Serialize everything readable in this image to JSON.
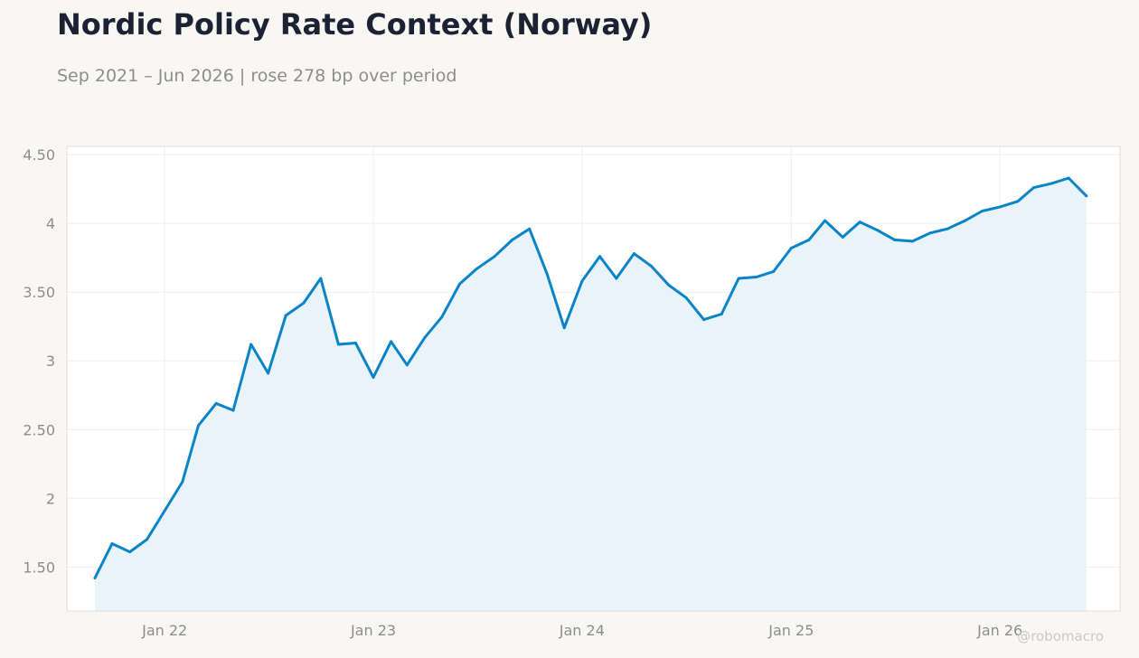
{
  "title": "Nordic Policy Rate Context (Norway)",
  "subtitle": "Sep 2021 – Jun 2026 | rose 278 bp over period",
  "watermark": "@robomacro",
  "colors": {
    "line": "#0a84c6",
    "fill": "#e9f3fa",
    "grid": "#eeeeee",
    "plot_background": "#ffffff",
    "page_background": "#f8f7f4"
  },
  "chart_data": {
    "type": "area",
    "title": "Nordic Policy Rate Context (Norway)",
    "subtitle": "Sep 2021 – Jun 2026 | rose 278 bp over period",
    "xlabel": "",
    "ylabel": "",
    "xlim": [
      "2021-07-14",
      "2026-07-30"
    ],
    "ylim": [
      1.18,
      4.56
    ],
    "grid": true,
    "legend": "none",
    "y_ticks": [
      {
        "value": 1.5,
        "label": "1.50"
      },
      {
        "value": 2,
        "label": "2"
      },
      {
        "value": 2.5,
        "label": "2.50"
      },
      {
        "value": 3,
        "label": "3"
      },
      {
        "value": 3.5,
        "label": "3.50"
      },
      {
        "value": 4,
        "label": "4"
      },
      {
        "value": 4.5,
        "label": "4.50"
      }
    ],
    "x_ticks": [
      {
        "date": "2022-01-01",
        "label": "Jan 22"
      },
      {
        "date": "2023-01-01",
        "label": "Jan 23"
      },
      {
        "date": "2024-01-01",
        "label": "Jan 24"
      },
      {
        "date": "2025-01-01",
        "label": "Jan 25"
      },
      {
        "date": "2026-01-01",
        "label": "Jan 26"
      }
    ],
    "series": [
      {
        "x": [
          "2021-09",
          "2021-10",
          "2021-11",
          "2021-12",
          "2022-01",
          "2022-02",
          "2022-03",
          "2022-04",
          "2022-05",
          "2022-06",
          "2022-07",
          "2022-08",
          "2022-09",
          "2022-10",
          "2022-11",
          "2022-12",
          "2023-01",
          "2023-02",
          "2023-03",
          "2023-04",
          "2023-05",
          "2023-06",
          "2023-07",
          "2023-08",
          "2023-09",
          "2023-10",
          "2023-11",
          "2023-12",
          "2024-01",
          "2024-02",
          "2024-03",
          "2024-04",
          "2024-05",
          "2024-06",
          "2024-07",
          "2024-08",
          "2024-09",
          "2024-10",
          "2024-11",
          "2024-12",
          "2025-01",
          "2025-02",
          "2025-03",
          "2025-04",
          "2025-05",
          "2025-06",
          "2025-07",
          "2025-08",
          "2025-09",
          "2025-10",
          "2025-11",
          "2025-12",
          "2026-01",
          "2026-02",
          "2026-03",
          "2026-04",
          "2026-05",
          "2026-06"
        ],
        "values": [
          1.42,
          1.67,
          1.61,
          1.7,
          1.91,
          2.12,
          2.53,
          2.69,
          2.64,
          3.12,
          2.91,
          3.33,
          3.42,
          3.6,
          3.12,
          3.13,
          2.88,
          3.14,
          2.97,
          3.17,
          3.32,
          3.56,
          3.67,
          3.76,
          3.88,
          3.96,
          3.63,
          3.24,
          3.58,
          3.76,
          3.6,
          3.78,
          3.69,
          3.55,
          3.46,
          3.3,
          3.34,
          3.6,
          3.61,
          3.65,
          3.82,
          3.88,
          4.02,
          3.9,
          4.01,
          3.95,
          3.88,
          3.87,
          3.93,
          3.96,
          4.02,
          4.09,
          4.12,
          4.16,
          4.26,
          4.29,
          4.33,
          4.2
        ]
      }
    ]
  }
}
